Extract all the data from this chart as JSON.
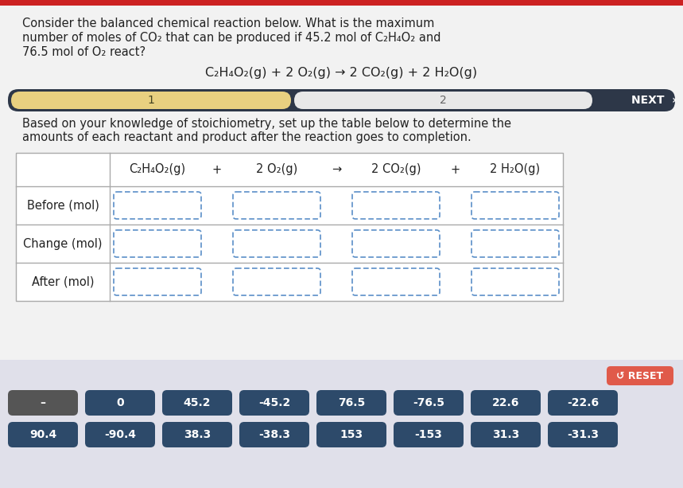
{
  "bg_color": "#f2f2f2",
  "top_bar_color": "#cc2222",
  "question_text_line1": "Consider the balanced chemical reaction below. What is the maximum",
  "question_text_line2": "number of moles of CO₂ that can be produced if 45.2 mol of C₂H₄O₂ and",
  "question_text_line3": "76.5 mol of O₂ react?",
  "equation": "C₂H₄O₂(g) + 2 O₂(g) → 2 CO₂(g) + 2 H₂O(g)",
  "nav_bar_color": "#2d3748",
  "nav_bar_step1_color": "#e8d080",
  "nav_bar_step2_color": "#e8e8e8",
  "nav_bar_step1_label": "1",
  "nav_bar_step2_label": "2",
  "nav_next_label": "NEXT",
  "instruction_line1": "Based on your knowledge of stoichiometry, set up the table below to determine the",
  "instruction_line2": "amounts of each reactant and product after the reaction goes to completion.",
  "table_col_headers": [
    "C₂H₄O₂(g)",
    "+",
    "2 O₂(g)",
    "→",
    "2 CO₂(g)",
    "+",
    "2 H₂O(g)"
  ],
  "table_row_labels": [
    "Before (mol)",
    "Change (mol)",
    "After (mol)"
  ],
  "input_box_color": "#ffffff",
  "input_box_border_color": "#5b8fc8",
  "reset_button_color": "#e05a4a",
  "reset_label": "↺ RESET",
  "button_row1": [
    "–",
    "0",
    "45.2",
    "-45.2",
    "76.5",
    "-76.5",
    "22.6",
    "-22.6"
  ],
  "button_row2": [
    "90.4",
    "-90.4",
    "38.3",
    "-38.3",
    "153",
    "-153",
    "31.3",
    "-31.3"
  ],
  "button_color_dark": "#2d4a6a",
  "button_color_darker": "#555555",
  "button_text_color": "#ffffff",
  "table_border_color": "#aaaaaa",
  "text_color": "#222222",
  "panel_bg_color": "#e0e0ea"
}
